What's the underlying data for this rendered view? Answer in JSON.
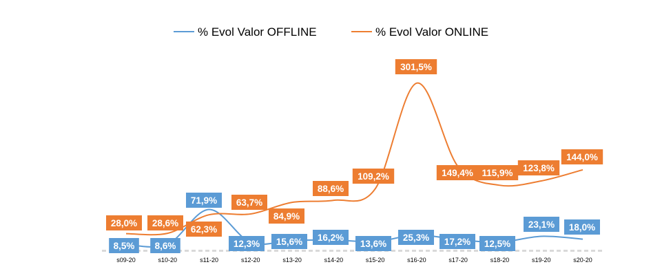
{
  "chart_data": {
    "type": "line",
    "title": "",
    "xlabel": "",
    "ylabel": "",
    "smooth": true,
    "ylim": [
      0,
      330
    ],
    "categories": [
      "s09-20",
      "s10-20",
      "s11-20",
      "s12-20",
      "s13-20",
      "s14-20",
      "s15-20",
      "s16-20",
      "s17-20",
      "s18-20",
      "s19-20",
      "s20-20"
    ],
    "legend_position": "top-center",
    "series": [
      {
        "name": "% Evol Valor OFFLINE",
        "color": "#5B9BD5",
        "values": [
          8.5,
          8.6,
          71.9,
          12.3,
          15.6,
          16.2,
          13.6,
          25.3,
          17.2,
          12.5,
          23.1,
          18.0
        ],
        "labels": [
          "8,5%",
          "8,6%",
          "71,9%",
          "12,3%",
          "15,6%",
          "16,2%",
          "13,6%",
          "25,3%",
          "17,2%",
          "12,5%",
          "23,1%",
          "18,0%"
        ]
      },
      {
        "name": "% Evol Valor ONLINE",
        "color": "#ED7D31",
        "values": [
          28.0,
          28.6,
          62.3,
          63.7,
          84.9,
          88.6,
          109.2,
          301.5,
          149.4,
          115.9,
          123.8,
          144.0
        ],
        "labels": [
          "28,0%",
          "28,6%",
          "62,3%",
          "63,7%",
          "84,9%",
          "88,6%",
          "109,2%",
          "301,5%",
          "149,4%",
          "115,9%",
          "123,8%",
          "144,0%"
        ]
      }
    ]
  }
}
